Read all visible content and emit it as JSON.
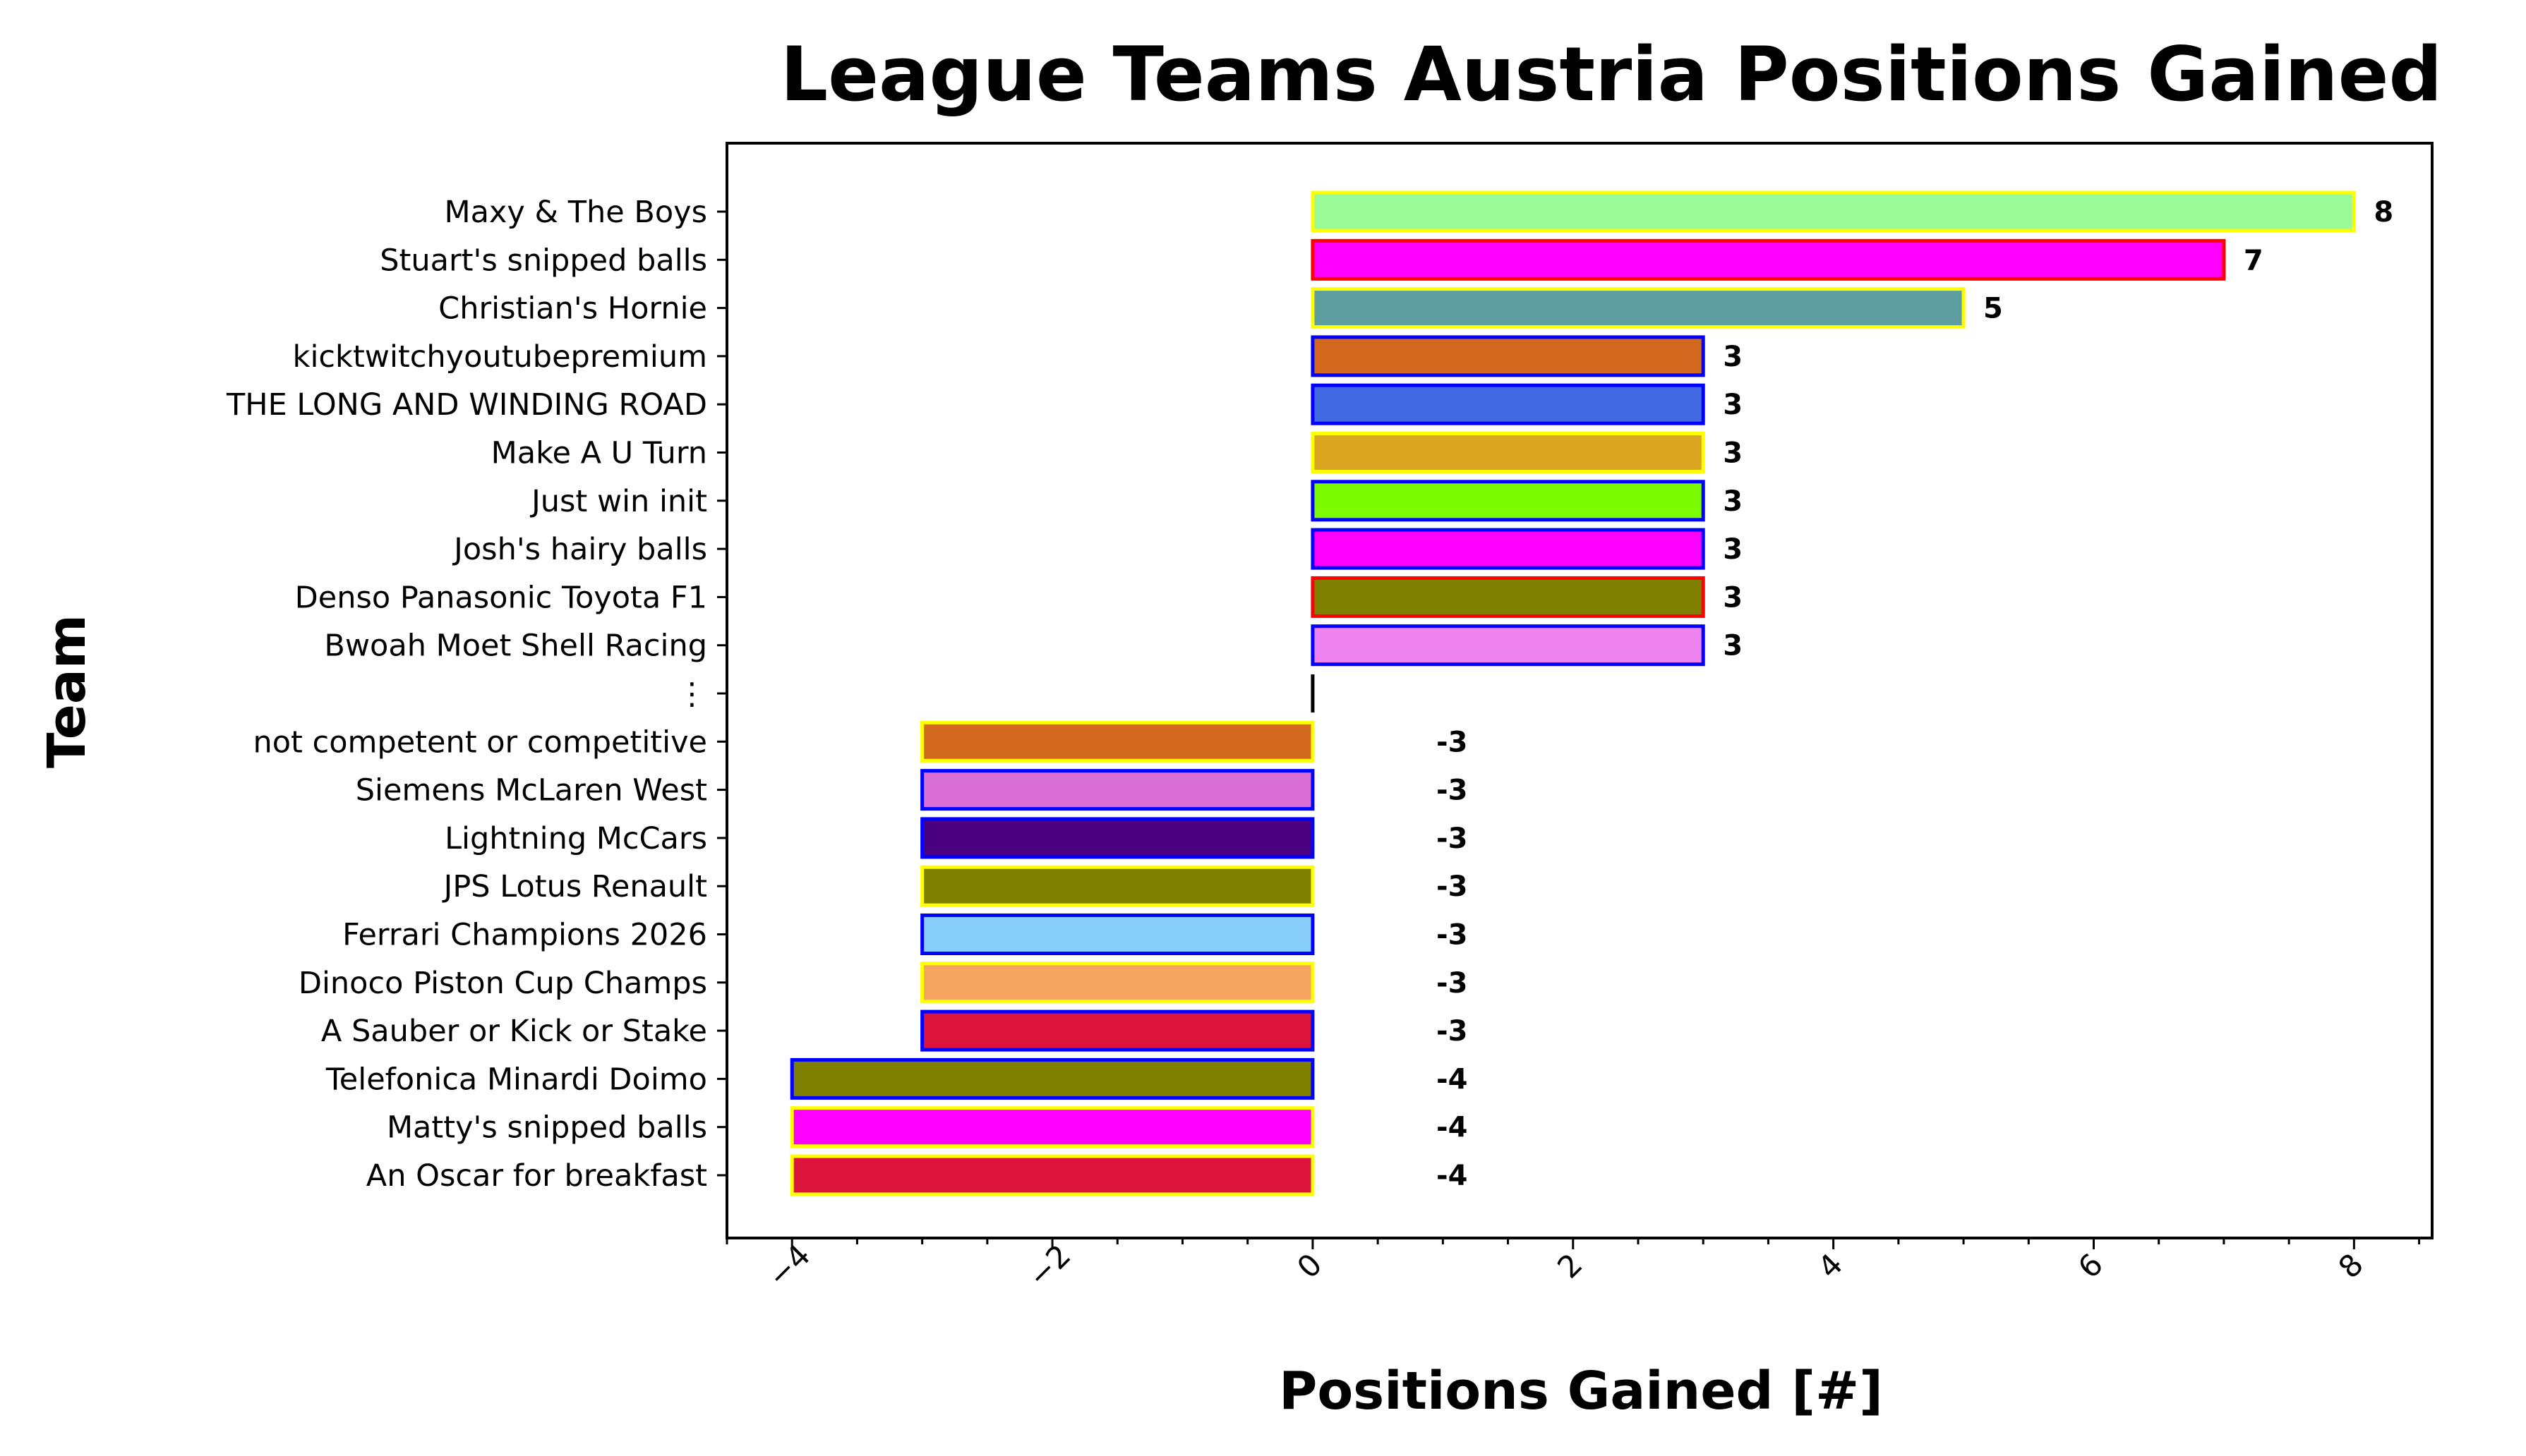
{
  "chart_data": {
    "type": "bar",
    "orientation": "horizontal",
    "title": "League Teams Austria Positions Gained",
    "xlabel": "Positions Gained [#]",
    "ylabel": "Team",
    "xlim": [
      -4.5,
      8.6
    ],
    "xticks": [
      -4,
      -2,
      0,
      2,
      4,
      6,
      8
    ],
    "xtick_labels": [
      "−4",
      "−2",
      "0",
      "2",
      "4",
      "6",
      "8"
    ],
    "grid": false,
    "legend": "none",
    "separator_label": "⋮",
    "categories": [
      "Maxy & The Boys",
      "Stuart's snipped balls",
      "Christian's Hornie",
      "kicktwitchyoutubepremium",
      "THE LONG AND WINDING ROAD",
      "Make A U Turn",
      "Just win init",
      "Josh's hairy balls",
      "Denso Panasonic Toyota F1",
      "Bwoah Moet Shell Racing",
      "not competent or competitive",
      "Siemens McLaren West",
      "Lightning McCars",
      "JPS Lotus Renault",
      "Ferrari Champions 2026",
      "Dinoco Piston Cup Champs",
      "A Sauber or Kick or Stake",
      "Telefonica Minardi Doimo",
      "Matty's snipped balls",
      "An Oscar for breakfast"
    ],
    "values": [
      8,
      7,
      5,
      3,
      3,
      3,
      3,
      3,
      3,
      3,
      -3,
      -3,
      -3,
      -3,
      -3,
      -3,
      -3,
      -4,
      -4,
      -4
    ],
    "value_labels": [
      "8",
      "7",
      "5",
      "3",
      "3",
      "3",
      "3",
      "3",
      "3",
      "3",
      "-3",
      "-3",
      "-3",
      "-3",
      "-3",
      "-3",
      "-3",
      "-4",
      "-4",
      "-4"
    ],
    "fill_colors": [
      "#98fb98",
      "#ff00ff",
      "#5f9ea0",
      "#d2691e",
      "#4169e1",
      "#daa520",
      "#7cfc00",
      "#ff00ff",
      "#808000",
      "#ee82ee",
      "#d2691e",
      "#da70d6",
      "#4b0082",
      "#808000",
      "#87cefa",
      "#f4a460",
      "#dc143c",
      "#808000",
      "#ff00ff",
      "#dc143c"
    ],
    "edge_colors": [
      "#ffff00",
      "#ff0000",
      "#ffff00",
      "#0000ff",
      "#0000ff",
      "#ffff00",
      "#0000ff",
      "#0000ff",
      "#ff0000",
      "#0000ff",
      "#ffff00",
      "#0000ff",
      "#0000ff",
      "#ffff00",
      "#0000ff",
      "#ffff00",
      "#0000ff",
      "#0000ff",
      "#ffff00",
      "#ffff00"
    ]
  }
}
